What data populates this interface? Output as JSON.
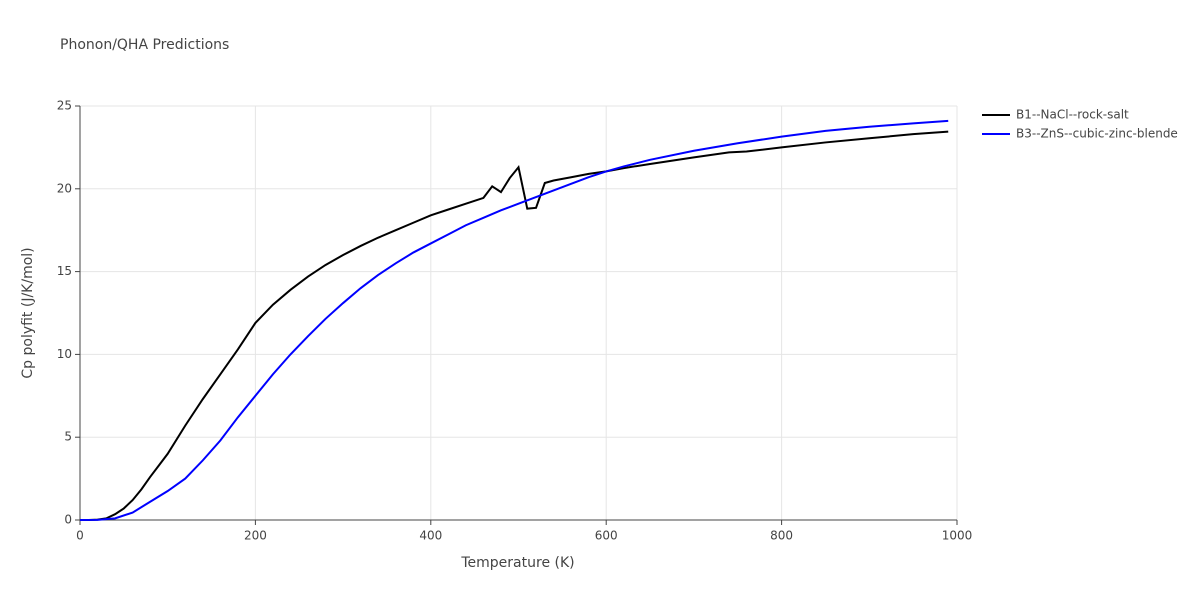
{
  "chart_data": {
    "type": "line",
    "title": "Phonon/QHA Predictions",
    "x_label": "Temperature (K)",
    "y_label": "Cp polyfit (J/K/mol)",
    "xlim": [
      0,
      1000
    ],
    "xticks": [
      0,
      200,
      400,
      600,
      800,
      1000
    ],
    "ylim": [
      0,
      25
    ],
    "yticks": [
      0,
      5,
      10,
      15,
      20,
      25
    ],
    "grid": true,
    "legend": "right",
    "series": [
      {
        "name": "B1--NaCl--rock-salt",
        "color": "#000000",
        "x": [
          0,
          10,
          20,
          30,
          40,
          50,
          60,
          70,
          80,
          90,
          100,
          120,
          140,
          160,
          180,
          200,
          220,
          240,
          260,
          280,
          300,
          320,
          340,
          360,
          380,
          400,
          420,
          440,
          460,
          470,
          480,
          490,
          500,
          510,
          520,
          530,
          540,
          560,
          580,
          600,
          620,
          650,
          700,
          740,
          760,
          800,
          850,
          900,
          950,
          990
        ],
        "values": [
          0,
          0,
          0.02,
          0.1,
          0.35,
          0.7,
          1.2,
          1.85,
          2.6,
          3.3,
          4.0,
          5.7,
          7.3,
          8.8,
          10.3,
          11.9,
          13.0,
          13.9,
          14.7,
          15.4,
          16.0,
          16.55,
          17.05,
          17.5,
          17.95,
          18.4,
          18.75,
          19.1,
          19.45,
          20.15,
          19.8,
          20.65,
          21.3,
          18.8,
          18.85,
          20.35,
          20.5,
          20.7,
          20.9,
          21.05,
          21.25,
          21.5,
          21.9,
          22.2,
          22.25,
          22.5,
          22.8,
          23.05,
          23.3,
          23.45
        ]
      },
      {
        "name": "B3--ZnS--cubic-zinc-blende",
        "color": "#0000ff",
        "x": [
          0,
          20,
          40,
          60,
          80,
          100,
          120,
          140,
          160,
          180,
          200,
          220,
          240,
          260,
          280,
          300,
          320,
          340,
          360,
          380,
          400,
          420,
          440,
          460,
          480,
          500,
          520,
          540,
          560,
          580,
          600,
          620,
          650,
          700,
          750,
          800,
          850,
          900,
          950,
          990
        ],
        "values": [
          0,
          0.01,
          0.1,
          0.45,
          1.1,
          1.75,
          2.5,
          3.6,
          4.8,
          6.2,
          7.5,
          8.8,
          10.0,
          11.1,
          12.15,
          13.1,
          14.0,
          14.8,
          15.5,
          16.15,
          16.7,
          17.25,
          17.8,
          18.25,
          18.7,
          19.1,
          19.5,
          19.9,
          20.3,
          20.7,
          21.05,
          21.35,
          21.75,
          22.3,
          22.75,
          23.15,
          23.5,
          23.75,
          23.95,
          24.1
        ]
      }
    ]
  }
}
